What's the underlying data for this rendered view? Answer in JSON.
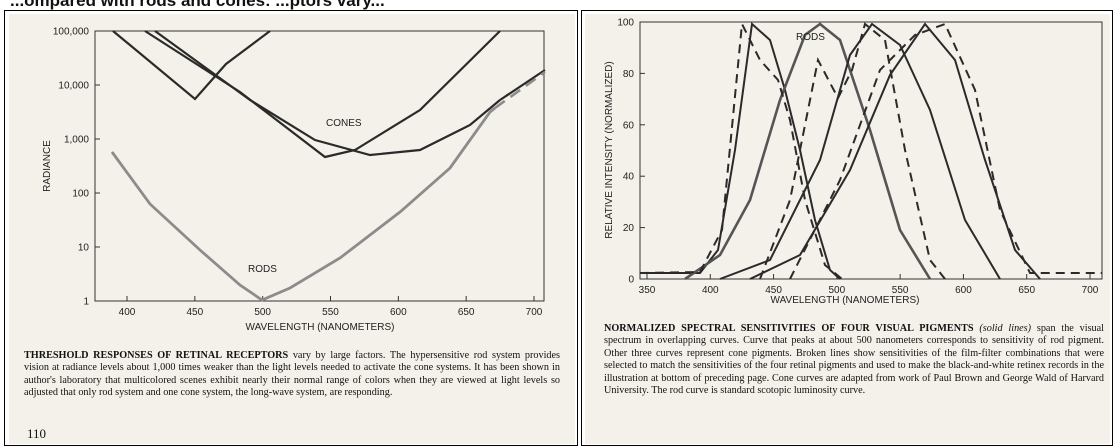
{
  "heading": "...ompared with rods and cones: ...ptors vary...",
  "page_number": "110",
  "left_figure": {
    "ylabel": "RADIANCE",
    "xlabel": "WAVELENGTH (NANOMETERS)",
    "y_ticks": [
      "100,000",
      "10,000",
      "1,000",
      "100",
      "10",
      "1"
    ],
    "x_ticks": [
      "400",
      "450",
      "500",
      "550",
      "600",
      "650",
      "700"
    ],
    "labels": {
      "cones": "CONES",
      "rods": "RODS"
    }
  },
  "left_caption": {
    "lead": "THRESHOLD RESPONSES OF RETINAL RECEPTORS",
    "text": " vary by large factors. The hypersensitive rod system provides vision at radiance levels about 1,000 times weaker than the light levels needed to activate the cone systems. It has been shown in author's laboratory that multicolored scenes exhibit nearly their normal range of colors when they are viewed at light levels so adjusted that only rod system and one cone system, the long-wave system, are responding."
  },
  "right_figure": {
    "ylabel": "RELATIVE INTENSITY (NORMALIZED)",
    "xlabel": "WAVELENGTH (NANOMETERS)",
    "y_ticks": [
      "100",
      "80",
      "60",
      "40",
      "20",
      "0"
    ],
    "x_ticks": [
      "350",
      "400",
      "450",
      "500",
      "550",
      "600",
      "650",
      "700"
    ],
    "labels": {
      "rods": "RODS"
    }
  },
  "right_caption": {
    "lead": "NORMALIZED SPECTRAL SENSITIVITIES OF FOUR VISUAL PIGMENTS",
    "italic": " (solid lines)",
    "text": " span the visual spectrum in overlapping curves. Curve that peaks at about 500 nanometers corresponds to sensitivity of rod pigment. Other three curves represent cone pigments. Broken lines show sensitivities of the film-filter combinations that were selected to match the sensitivities of the four retinal pigments and used to make the black-and-white retinex records in the illustration at bottom of preceding page. Cone curves are adapted from work of Paul Brown and George Wald of Harvard University. The rod curve is standard scotopic luminosity curve."
  },
  "colors": {
    "ink": "#2a2a2a",
    "rod_curve": "#8c8c8c",
    "paper": "#f4f1ea"
  }
}
